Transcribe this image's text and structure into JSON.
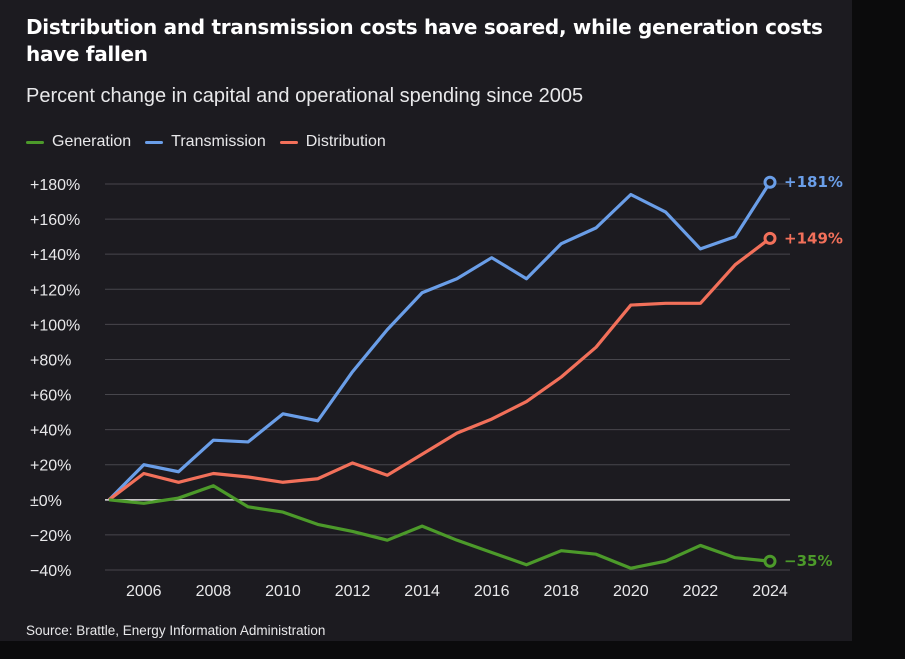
{
  "title": "Distribution and transmission costs have soared, while generation costs have fallen",
  "subtitle": "Percent change in capital and operational spending since 2005",
  "source": "Source: Brattle, Energy Information Administration",
  "chart_data": {
    "type": "line",
    "title": "Distribution and transmission costs have soared, while generation costs have fallen",
    "subtitle": "Percent change in capital and operational spending since 2005",
    "x": [
      2005,
      2006,
      2007,
      2008,
      2009,
      2010,
      2011,
      2012,
      2013,
      2014,
      2015,
      2016,
      2017,
      2018,
      2019,
      2020,
      2021,
      2022,
      2023,
      2024
    ],
    "xticks": [
      "2006",
      "2008",
      "2010",
      "2012",
      "2014",
      "2016",
      "2018",
      "2020",
      "2022",
      "2024"
    ],
    "yticks": [
      "+180%",
      "+160%",
      "+140%",
      "+120%",
      "+100%",
      "+80%",
      "+60%",
      "+40%",
      "+20%",
      "±0%",
      "−20%",
      "−40%"
    ],
    "ylim": [
      -40,
      180
    ],
    "grid": true,
    "legend_position": "top-left",
    "series": [
      {
        "name": "Generation",
        "color": "#4c9a2a",
        "values": [
          0,
          -2,
          1,
          8,
          -4,
          -7,
          -14,
          -18,
          -23,
          -15,
          -23,
          -30,
          -37,
          -29,
          -31,
          -39,
          -35,
          -26,
          -33,
          -35
        ],
        "end_label": "−35%"
      },
      {
        "name": "Transmission",
        "color": "#6a9ee8",
        "values": [
          0,
          20,
          16,
          34,
          33,
          49,
          45,
          73,
          97,
          118,
          126,
          138,
          126,
          146,
          155,
          174,
          164,
          143,
          150,
          181
        ],
        "end_label": "+181%"
      },
      {
        "name": "Distribution",
        "color": "#f2705a",
        "values": [
          0,
          15,
          10,
          15,
          13,
          10,
          12,
          21,
          14,
          26,
          38,
          46,
          56,
          70,
          87,
          111,
          112,
          112,
          134,
          149
        ],
        "end_label": "+149%"
      }
    ]
  }
}
